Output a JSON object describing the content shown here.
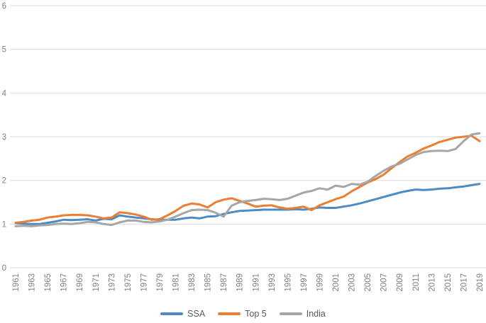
{
  "chart_data": {
    "type": "line",
    "title": "",
    "xlabel": "",
    "ylabel": "",
    "ylim": [
      0,
      6
    ],
    "grid": "horizontal",
    "gridline_color": "#D9D9D9",
    "tick_label_color": "#808080",
    "legend_position": "bottom",
    "y_ticks": [
      0,
      1,
      2,
      3,
      4,
      5,
      6
    ],
    "x_ticks": [
      1961,
      1963,
      1965,
      1967,
      1969,
      1971,
      1973,
      1975,
      1977,
      1979,
      1981,
      1983,
      1985,
      1987,
      1989,
      1991,
      1993,
      1995,
      1997,
      1999,
      2001,
      2003,
      2005,
      2007,
      2009,
      2011,
      2013,
      2015,
      2017,
      2019
    ],
    "x": [
      1961,
      1962,
      1963,
      1964,
      1965,
      1966,
      1967,
      1968,
      1969,
      1970,
      1971,
      1972,
      1973,
      1974,
      1975,
      1976,
      1977,
      1978,
      1979,
      1980,
      1981,
      1982,
      1983,
      1984,
      1985,
      1986,
      1987,
      1988,
      1989,
      1990,
      1991,
      1992,
      1993,
      1994,
      1995,
      1996,
      1997,
      1998,
      1999,
      2000,
      2001,
      2002,
      2003,
      2004,
      2005,
      2006,
      2007,
      2008,
      2009,
      2010,
      2011,
      2012,
      2013,
      2014,
      2015,
      2016,
      2017,
      2018,
      2019
    ],
    "series": [
      {
        "name": "SSA",
        "color": "#4B8CC8",
        "values": [
          1.02,
          1.01,
          1.0,
          1.0,
          1.03,
          1.06,
          1.1,
          1.09,
          1.1,
          1.11,
          1.08,
          1.12,
          1.11,
          1.2,
          1.17,
          1.15,
          1.13,
          1.11,
          1.1,
          1.1,
          1.1,
          1.13,
          1.15,
          1.13,
          1.17,
          1.18,
          1.23,
          1.27,
          1.3,
          1.31,
          1.32,
          1.33,
          1.33,
          1.33,
          1.33,
          1.34,
          1.33,
          1.35,
          1.38,
          1.37,
          1.37,
          1.4,
          1.43,
          1.47,
          1.52,
          1.57,
          1.62,
          1.67,
          1.72,
          1.76,
          1.79,
          1.78,
          1.79,
          1.81,
          1.82,
          1.84,
          1.86,
          1.89,
          1.92
        ]
      },
      {
        "name": "Top 5",
        "color": "#ED7D31",
        "values": [
          1.03,
          1.05,
          1.08,
          1.1,
          1.15,
          1.17,
          1.2,
          1.21,
          1.21,
          1.2,
          1.17,
          1.13,
          1.15,
          1.27,
          1.25,
          1.22,
          1.17,
          1.1,
          1.11,
          1.2,
          1.3,
          1.42,
          1.47,
          1.45,
          1.38,
          1.5,
          1.56,
          1.59,
          1.53,
          1.47,
          1.4,
          1.42,
          1.43,
          1.38,
          1.35,
          1.37,
          1.4,
          1.32,
          1.43,
          1.5,
          1.57,
          1.63,
          1.75,
          1.85,
          1.95,
          2.03,
          2.13,
          2.28,
          2.42,
          2.55,
          2.63,
          2.73,
          2.8,
          2.88,
          2.93,
          2.98,
          3.0,
          3.02,
          2.9
        ]
      },
      {
        "name": "India",
        "color": "#A6A6A6",
        "values": [
          0.95,
          0.96,
          0.95,
          0.97,
          0.98,
          1.0,
          1.01,
          1.0,
          1.02,
          1.05,
          1.04,
          1.0,
          0.98,
          1.04,
          1.08,
          1.08,
          1.05,
          1.04,
          1.06,
          1.1,
          1.17,
          1.25,
          1.32,
          1.33,
          1.32,
          1.26,
          1.17,
          1.42,
          1.5,
          1.53,
          1.55,
          1.58,
          1.57,
          1.55,
          1.58,
          1.65,
          1.72,
          1.76,
          1.82,
          1.79,
          1.88,
          1.85,
          1.92,
          1.9,
          1.97,
          2.1,
          2.22,
          2.32,
          2.38,
          2.48,
          2.58,
          2.65,
          2.67,
          2.68,
          2.67,
          2.72,
          2.9,
          3.05,
          3.08
        ]
      }
    ]
  }
}
